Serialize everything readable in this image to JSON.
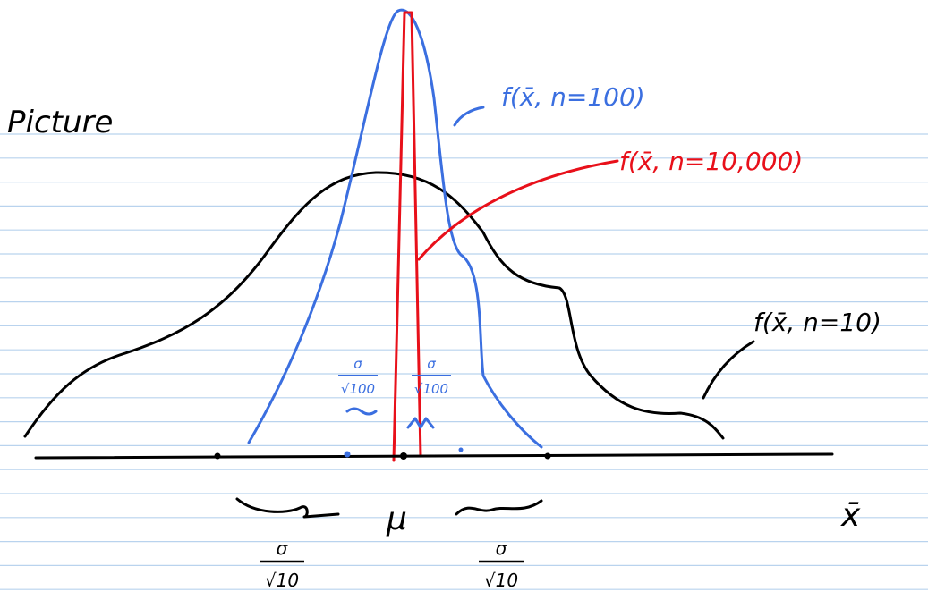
{
  "title": "Picture",
  "labels": {
    "n100": "f(x̄, n=100)",
    "n10000": "f(x̄, n=10,000)",
    "n10": "f(x̄, n=10)",
    "mu": "μ",
    "xbar": "x̄",
    "sigma": "σ",
    "root10": "√10",
    "root100": "√100"
  }
}
